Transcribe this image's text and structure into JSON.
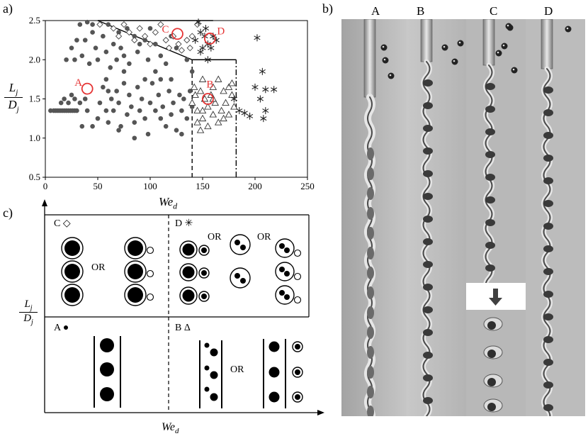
{
  "panel_labels": {
    "a": "a)",
    "b": "b)",
    "c": "c)"
  },
  "chart_data": {
    "type": "scatter",
    "xlabel_base": "We",
    "xlabel_sub": "d",
    "ylabel_num_base": "L",
    "ylabel_num_sub": "j",
    "ylabel_den_base": "D",
    "ylabel_den_sub": "j",
    "xlim": [
      0,
      250
    ],
    "ylim": [
      0.5,
      2.5
    ],
    "xticks": [
      "0",
      "50",
      "100",
      "150",
      "200",
      "250"
    ],
    "yticks": [
      "0.5",
      "1.0",
      "1.5",
      "2.0",
      "2.5"
    ],
    "grid": false,
    "series": [
      {
        "marker": "filled-circle",
        "points": [
          [
            5,
            1.35
          ],
          [
            8,
            1.35
          ],
          [
            10,
            1.35
          ],
          [
            12,
            1.35
          ],
          [
            14,
            1.35
          ],
          [
            16,
            1.35
          ],
          [
            18,
            1.35
          ],
          [
            20,
            1.35
          ],
          [
            22,
            1.35
          ],
          [
            24,
            1.35
          ],
          [
            26,
            1.35
          ],
          [
            28,
            1.35
          ],
          [
            30,
            1.35
          ],
          [
            15,
            1.45
          ],
          [
            18,
            1.5
          ],
          [
            22,
            1.45
          ],
          [
            25,
            1.55
          ],
          [
            28,
            1.5
          ],
          [
            33,
            1.45
          ],
          [
            38,
            1.5
          ],
          [
            40,
            1.35
          ],
          [
            35,
            1.15
          ],
          [
            20,
            2.0
          ],
          [
            25,
            2.15
          ],
          [
            28,
            2.0
          ],
          [
            30,
            2.25
          ],
          [
            35,
            2.05
          ],
          [
            38,
            2.25
          ],
          [
            40,
            2.48
          ],
          [
            45,
            2.35
          ],
          [
            42,
            1.95
          ],
          [
            48,
            2.15
          ],
          [
            50,
            2.0
          ],
          [
            55,
            2.3
          ],
          [
            58,
            2.1
          ],
          [
            60,
            2.45
          ],
          [
            62,
            1.9
          ],
          [
            65,
            2.2
          ],
          [
            68,
            2.0
          ],
          [
            70,
            2.35
          ],
          [
            72,
            2.15
          ],
          [
            75,
            2.05
          ],
          [
            78,
            2.4
          ],
          [
            80,
            1.95
          ],
          [
            85,
            2.3
          ],
          [
            88,
            2.1
          ],
          [
            90,
            2.2
          ],
          [
            95,
            2.25
          ],
          [
            98,
            2.0
          ],
          [
            100,
            2.4
          ],
          [
            105,
            2.2
          ],
          [
            110,
            2.05
          ],
          [
            115,
            1.95
          ],
          [
            120,
            2.3
          ],
          [
            125,
            2.15
          ],
          [
            135,
            2.0
          ],
          [
            50,
            1.25
          ],
          [
            52,
            1.45
          ],
          [
            55,
            1.65
          ],
          [
            58,
            1.35
          ],
          [
            60,
            1.2
          ],
          [
            63,
            1.5
          ],
          [
            65,
            1.35
          ],
          [
            68,
            1.6
          ],
          [
            70,
            1.45
          ],
          [
            72,
            1.15
          ],
          [
            75,
            1.7
          ],
          [
            78,
            1.3
          ],
          [
            80,
            1.55
          ],
          [
            82,
            1.4
          ],
          [
            85,
            1.2
          ],
          [
            88,
            1.65
          ],
          [
            90,
            1.35
          ],
          [
            92,
            1.5
          ],
          [
            95,
            1.25
          ],
          [
            98,
            1.05
          ],
          [
            100,
            1.45
          ],
          [
            102,
            1.7
          ],
          [
            105,
            1.35
          ],
          [
            108,
            1.55
          ],
          [
            110,
            1.25
          ],
          [
            112,
            1.4
          ],
          [
            115,
            1.15
          ],
          [
            118,
            1.6
          ],
          [
            120,
            1.3
          ],
          [
            122,
            1.45
          ],
          [
            125,
            1.1
          ],
          [
            128,
            1.55
          ],
          [
            130,
            1.35
          ],
          [
            132,
            1.5
          ],
          [
            135,
            1.25
          ],
          [
            138,
            1.6
          ],
          [
            140,
            1.4
          ],
          [
            120,
            1.75
          ],
          [
            105,
            1.85
          ],
          [
            95,
            1.75
          ],
          [
            45,
            1.15
          ],
          [
            60,
            1.6
          ],
          [
            70,
            1.1
          ],
          [
            85,
            1.0
          ],
          [
            130,
            1.05
          ],
          [
            110,
            1.75
          ],
          [
            33,
            2.45
          ],
          [
            45,
            2.45
          ],
          [
            58,
            1.75
          ],
          [
            75,
            1.85
          ],
          [
            140,
            1.85
          ]
        ]
      },
      {
        "marker": "open-diamond",
        "points": [
          [
            52,
            2.45
          ],
          [
            65,
            2.4
          ],
          [
            70,
            2.3
          ],
          [
            75,
            2.45
          ],
          [
            80,
            2.35
          ],
          [
            85,
            2.25
          ],
          [
            90,
            2.4
          ],
          [
            95,
            2.3
          ],
          [
            100,
            2.2
          ],
          [
            105,
            2.35
          ],
          [
            110,
            2.45
          ],
          [
            115,
            2.25
          ],
          [
            118,
            2.15
          ],
          [
            122,
            2.3
          ],
          [
            127,
            2.2
          ],
          [
            130,
            2.12
          ],
          [
            135,
            2.25
          ],
          [
            138,
            2.15
          ],
          [
            140,
            2.3
          ],
          [
            145,
            2.45
          ]
        ]
      },
      {
        "marker": "open-triangle",
        "points": [
          [
            140,
            1.45
          ],
          [
            143,
            1.55
          ],
          [
            145,
            1.35
          ],
          [
            148,
            1.6
          ],
          [
            150,
            1.25
          ],
          [
            152,
            1.5
          ],
          [
            155,
            1.4
          ],
          [
            158,
            1.55
          ],
          [
            160,
            1.3
          ],
          [
            162,
            1.45
          ],
          [
            165,
            1.2
          ],
          [
            168,
            1.35
          ],
          [
            170,
            1.6
          ],
          [
            172,
            1.45
          ],
          [
            175,
            1.3
          ],
          [
            178,
            1.55
          ],
          [
            180,
            1.4
          ],
          [
            145,
            1.2
          ],
          [
            150,
            1.75
          ],
          [
            160,
            1.65
          ],
          [
            165,
            1.75
          ],
          [
            175,
            1.65
          ],
          [
            148,
            1.1
          ],
          [
            155,
            1.15
          ],
          [
            170,
            1.25
          ],
          [
            150,
            1.35
          ],
          [
            160,
            1.5
          ],
          [
            178,
            1.7
          ],
          [
            142,
            1.65
          ]
        ]
      },
      {
        "marker": "asterisk",
        "points": [
          [
            143,
            2.25
          ],
          [
            148,
            2.35
          ],
          [
            150,
            2.15
          ],
          [
            152,
            2.3
          ],
          [
            155,
            2.2
          ],
          [
            158,
            2.15
          ],
          [
            160,
            2.3
          ],
          [
            163,
            2.25
          ],
          [
            153,
            2.4
          ],
          [
            146,
            2.48
          ],
          [
            148,
            2.1
          ],
          [
            185,
            1.35
          ],
          [
            195,
            1.28
          ],
          [
            200,
            1.65
          ],
          [
            205,
            1.5
          ],
          [
            207,
            1.85
          ],
          [
            210,
            1.62
          ],
          [
            210,
            1.35
          ],
          [
            208,
            1.25
          ],
          [
            218,
            1.62
          ],
          [
            202,
            2.28
          ],
          [
            180,
            1.5
          ],
          [
            190,
            1.32
          ],
          [
            155,
            2.0
          ]
        ]
      }
    ],
    "annotations": [
      {
        "label": "A",
        "x": 40,
        "y": 1.63,
        "color": "#e53333"
      },
      {
        "label": "B",
        "x": 155,
        "y": 1.5,
        "color": "#e53333"
      },
      {
        "label": "C",
        "x": 126,
        "y": 2.33,
        "color": "#e53333"
      },
      {
        "label": "D",
        "x": 157,
        "y": 2.27,
        "color": "#e53333"
      }
    ],
    "lines": [
      {
        "style": "solid",
        "points": [
          [
            50,
            2.5
          ],
          [
            160,
            2.5
          ]
        ]
      },
      {
        "style": "solid",
        "points": [
          [
            50,
            2.5
          ],
          [
            140,
            2.0
          ],
          [
            182,
            2.0
          ]
        ]
      },
      {
        "style": "dashed",
        "points": [
          [
            140,
            0.5
          ],
          [
            140,
            2.0
          ]
        ]
      },
      {
        "style": "dashdot",
        "points": [
          [
            182,
            0.5
          ],
          [
            182,
            2.0
          ]
        ]
      }
    ]
  },
  "photo_labels": [
    "A",
    "B",
    "C",
    "D"
  ],
  "regime_diagram": {
    "xlabel_base": "We",
    "xlabel_sub": "d",
    "ylabel_num_base": "L",
    "ylabel_num_sub": "j",
    "ylabel_den_base": "D",
    "ylabel_den_sub": "j",
    "quadrants": [
      {
        "id": "C",
        "label": "C",
        "symbol": "◇"
      },
      {
        "id": "D",
        "label": "D",
        "symbol": "✳"
      },
      {
        "id": "A",
        "label": "A",
        "symbol": "●"
      },
      {
        "id": "B",
        "label": "B",
        "symbol": "Δ"
      }
    ],
    "or_text": "OR"
  },
  "colors": {
    "annotation": "#e53333",
    "ink": "#000000",
    "dots": "#555555"
  }
}
